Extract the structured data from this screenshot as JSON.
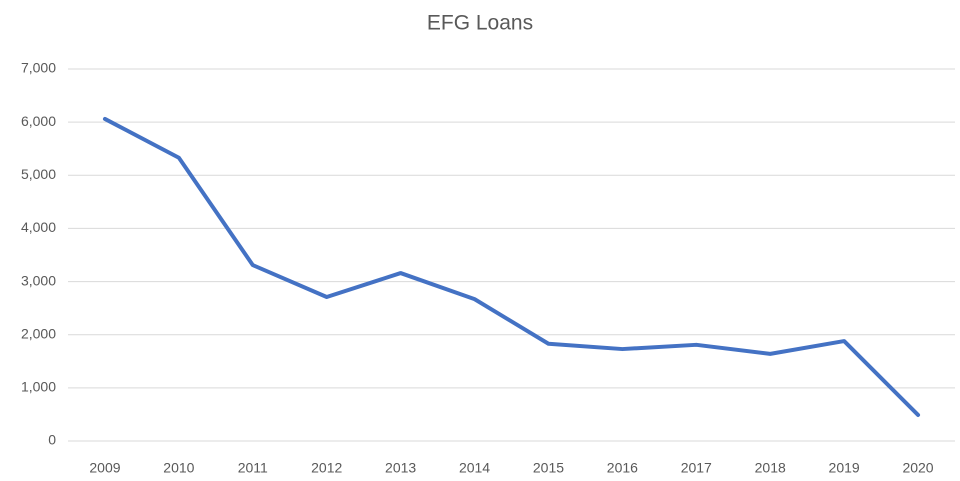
{
  "chart_data": {
    "type": "line",
    "title": "EFG Loans",
    "categories": [
      "2009",
      "2010",
      "2011",
      "2012",
      "2013",
      "2014",
      "2015",
      "2016",
      "2017",
      "2018",
      "2019",
      "2020"
    ],
    "series": [
      {
        "name": "EFG Loans",
        "color": "#4472c4",
        "values": [
          6060,
          5330,
          3310,
          2710,
          3160,
          2670,
          1830,
          1730,
          1810,
          1640,
          1880,
          490
        ]
      }
    ],
    "ylim": [
      0,
      7000
    ],
    "yticks": [
      0,
      {
        "value": 1000,
        "label": "1,000"
      },
      {
        "value": 2000,
        "label": "2,000"
      },
      {
        "value": 3000,
        "label": "3,000"
      },
      {
        "value": 4000,
        "label": "4,000"
      },
      {
        "value": 5000,
        "label": "5,000"
      },
      {
        "value": 6000,
        "label": "6,000"
      },
      {
        "value": 7000,
        "label": "7,000"
      }
    ],
    "grid": true
  }
}
